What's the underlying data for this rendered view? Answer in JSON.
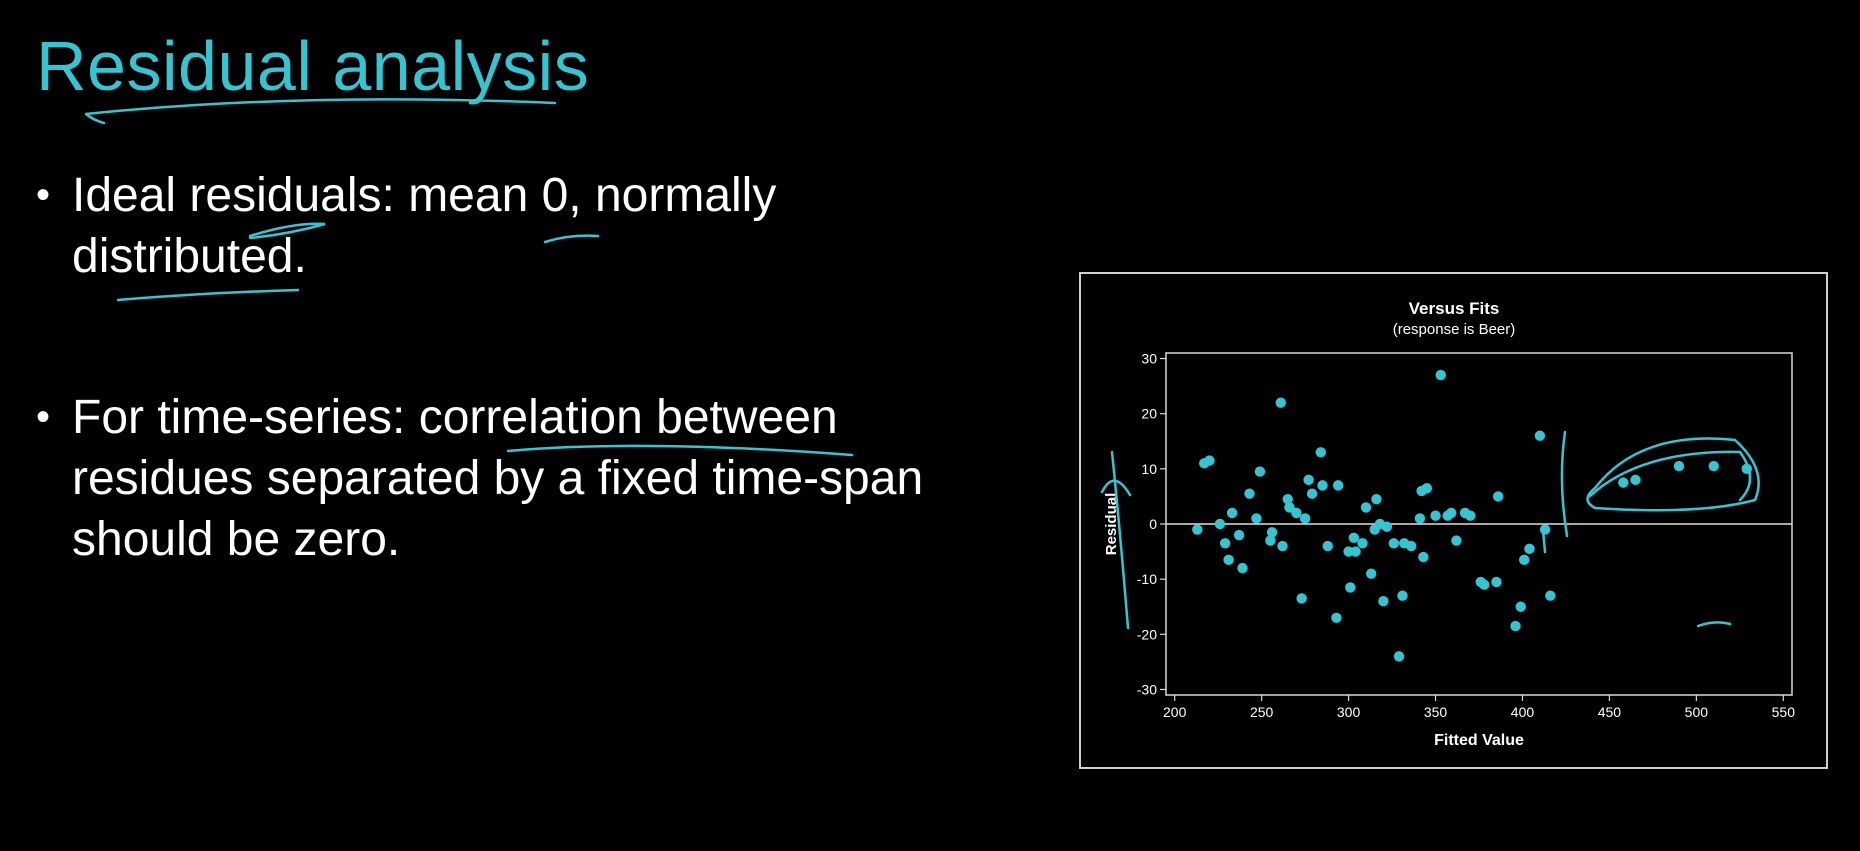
{
  "slide": {
    "title": "Residual analysis",
    "bullets": [
      "Ideal residuals: mean 0, normally distributed.",
      "For time-series: correlation between residues separated by a fixed time-span should be zero."
    ],
    "bullet_glyph": "•",
    "accent_color": "#33c6d2"
  },
  "chart_data": {
    "type": "scatter",
    "title": "Versus Fits",
    "subtitle": "(response is Beer)",
    "xlabel": "Fitted Value",
    "ylabel": "Residual",
    "xlim": [
      195,
      555
    ],
    "ylim": [
      -31,
      31
    ],
    "xticks": [
      200,
      250,
      300,
      350,
      400,
      450,
      500,
      550
    ],
    "yticks": [
      30,
      20,
      10,
      0,
      -10,
      -20,
      -30
    ],
    "reference_line_y": 0,
    "grid": false,
    "point_color": "#33c6d2",
    "points": [
      [
        213,
        -1
      ],
      [
        217,
        11
      ],
      [
        220,
        11.5
      ],
      [
        226,
        0
      ],
      [
        229,
        -3.5
      ],
      [
        231,
        -6.5
      ],
      [
        233,
        2
      ],
      [
        237,
        -2
      ],
      [
        239,
        -8
      ],
      [
        243,
        5.5
      ],
      [
        247,
        1
      ],
      [
        249,
        9.5
      ],
      [
        255,
        -3
      ],
      [
        256,
        -1.5
      ],
      [
        261,
        22
      ],
      [
        262,
        -4
      ],
      [
        265,
        4.5
      ],
      [
        266,
        3
      ],
      [
        270,
        2
      ],
      [
        273,
        -13.5
      ],
      [
        275,
        1
      ],
      [
        277,
        8
      ],
      [
        279,
        5.5
      ],
      [
        284,
        13
      ],
      [
        285,
        7
      ],
      [
        288,
        -4
      ],
      [
        293,
        -17
      ],
      [
        294,
        7
      ],
      [
        300,
        -5
      ],
      [
        301,
        -11.5
      ],
      [
        303,
        -2.5
      ],
      [
        304,
        -5
      ],
      [
        308,
        -3.5
      ],
      [
        310,
        3
      ],
      [
        313,
        -9
      ],
      [
        315,
        -1
      ],
      [
        316,
        4.5
      ],
      [
        318,
        0
      ],
      [
        320,
        -14
      ],
      [
        322,
        -0.5
      ],
      [
        326,
        -3.5
      ],
      [
        329,
        -24
      ],
      [
        331,
        -13
      ],
      [
        332,
        -3.5
      ],
      [
        336,
        -4
      ],
      [
        341,
        1
      ],
      [
        342,
        6
      ],
      [
        343,
        -6
      ],
      [
        345,
        6.5
      ],
      [
        350,
        1.5
      ],
      [
        353,
        27
      ],
      [
        357,
        1.5
      ],
      [
        359,
        2
      ],
      [
        362,
        -3
      ],
      [
        367,
        2
      ],
      [
        370,
        1.5
      ],
      [
        376,
        -10.5
      ],
      [
        378,
        -11
      ],
      [
        385,
        -10.5
      ],
      [
        386,
        5
      ],
      [
        396,
        -18.5
      ],
      [
        399,
        -15
      ],
      [
        401,
        -6.5
      ],
      [
        404,
        -4.5
      ],
      [
        410,
        16
      ],
      [
        413,
        -1
      ],
      [
        416,
        -13
      ],
      [
        458,
        7.5
      ],
      [
        465,
        8
      ],
      [
        490,
        10.5
      ],
      [
        510,
        10.5
      ],
      [
        529,
        10
      ]
    ]
  }
}
